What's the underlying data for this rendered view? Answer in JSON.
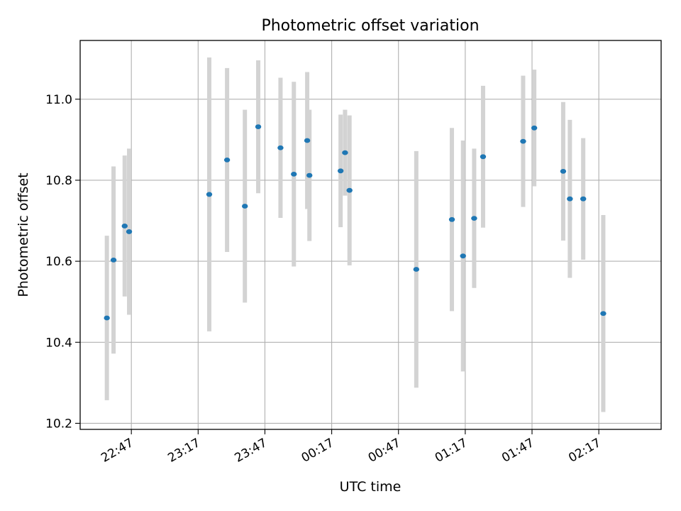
{
  "chart_data": {
    "type": "scatter",
    "title": "Photometric offset variation",
    "xlabel": "UTC time",
    "ylabel": "Photometric offset",
    "grid": true,
    "x_unit": "time of day (UTC, HH:MM)",
    "xlim": [
      "22:24",
      "02:45"
    ],
    "ylim": [
      10.185,
      11.145
    ],
    "x_ticks": [
      "22:47",
      "23:17",
      "23:47",
      "00:17",
      "00:47",
      "01:17",
      "01:47",
      "02:17"
    ],
    "y_ticks": [
      "10.2",
      "10.4",
      "10.6",
      "10.8",
      "11.0"
    ],
    "marker_color": "#1f77b4",
    "errorbar_color": "#d3d3d3",
    "points": [
      {
        "x": "22:36",
        "y": 10.46,
        "ylo": 10.257,
        "yhi": 10.663
      },
      {
        "x": "22:39",
        "y": 10.603,
        "ylo": 10.372,
        "yhi": 10.834
      },
      {
        "x": "22:44",
        "y": 10.687,
        "ylo": 10.513,
        "yhi": 10.861
      },
      {
        "x": "22:46",
        "y": 10.673,
        "ylo": 10.468,
        "yhi": 10.878
      },
      {
        "x": "23:22",
        "y": 10.765,
        "ylo": 10.427,
        "yhi": 11.103
      },
      {
        "x": "23:30",
        "y": 10.85,
        "ylo": 10.623,
        "yhi": 11.077
      },
      {
        "x": "23:38",
        "y": 10.736,
        "ylo": 10.498,
        "yhi": 10.974
      },
      {
        "x": "23:44",
        "y": 10.932,
        "ylo": 10.768,
        "yhi": 11.096
      },
      {
        "x": "23:54",
        "y": 10.88,
        "ylo": 10.707,
        "yhi": 11.053
      },
      {
        "x": "00:00",
        "y": 10.815,
        "ylo": 10.587,
        "yhi": 11.043
      },
      {
        "x": "00:06",
        "y": 10.898,
        "ylo": 10.729,
        "yhi": 11.067
      },
      {
        "x": "00:07",
        "y": 10.812,
        "ylo": 10.65,
        "yhi": 10.974
      },
      {
        "x": "00:21",
        "y": 10.823,
        "ylo": 10.684,
        "yhi": 10.962
      },
      {
        "x": "00:23",
        "y": 10.868,
        "ylo": 10.762,
        "yhi": 10.974
      },
      {
        "x": "00:25",
        "y": 10.775,
        "ylo": 10.59,
        "yhi": 10.96
      },
      {
        "x": "00:55",
        "y": 10.58,
        "ylo": 10.288,
        "yhi": 10.872
      },
      {
        "x": "01:11",
        "y": 10.703,
        "ylo": 10.477,
        "yhi": 10.929
      },
      {
        "x": "01:16",
        "y": 10.613,
        "ylo": 10.328,
        "yhi": 10.898
      },
      {
        "x": "01:21",
        "y": 10.706,
        "ylo": 10.534,
        "yhi": 10.878
      },
      {
        "x": "01:25",
        "y": 10.858,
        "ylo": 10.683,
        "yhi": 11.033
      },
      {
        "x": "01:43",
        "y": 10.896,
        "ylo": 10.734,
        "yhi": 11.058
      },
      {
        "x": "01:48",
        "y": 10.929,
        "ylo": 10.785,
        "yhi": 11.073
      },
      {
        "x": "02:01",
        "y": 10.822,
        "ylo": 10.651,
        "yhi": 10.993
      },
      {
        "x": "02:04",
        "y": 10.754,
        "ylo": 10.559,
        "yhi": 10.949
      },
      {
        "x": "02:10",
        "y": 10.754,
        "ylo": 10.604,
        "yhi": 10.904
      },
      {
        "x": "02:19",
        "y": 10.471,
        "ylo": 10.228,
        "yhi": 10.714
      }
    ]
  }
}
